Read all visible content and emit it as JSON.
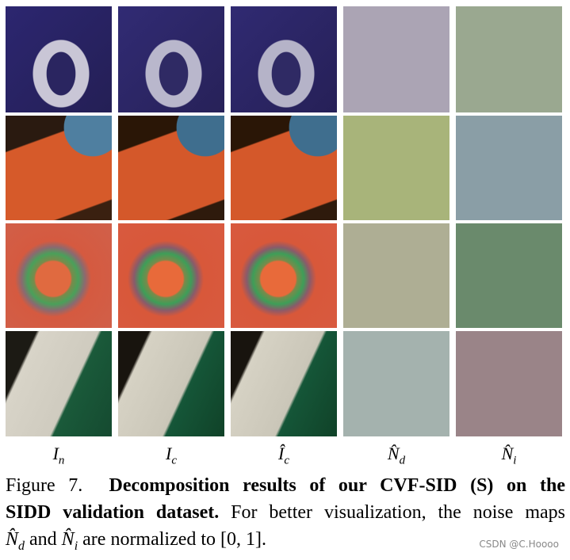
{
  "figure": {
    "column_labels": [
      {
        "main": "I",
        "sub": "n"
      },
      {
        "main": "I",
        "sub": "c"
      },
      {
        "main": "Î",
        "sub": "c"
      },
      {
        "main": "N̂",
        "sub": "d"
      },
      {
        "main": "N̂",
        "sub": "i"
      }
    ],
    "caption": {
      "label": "Figure 7.",
      "bold_line_1": "Decomposition results of our CVF-SID (S) on the",
      "bold_line_2": "SIDD validation dataset.",
      "text_line_2": "For better visualization, the noise maps",
      "symbol_1": {
        "main": "N̂",
        "sub": "d"
      },
      "text_and": "and",
      "symbol_2": {
        "main": "N̂",
        "sub": "i"
      },
      "text_line_3": "are normalized to [0, 1]."
    },
    "watermark": "CSDN @C.Hoooo"
  }
}
